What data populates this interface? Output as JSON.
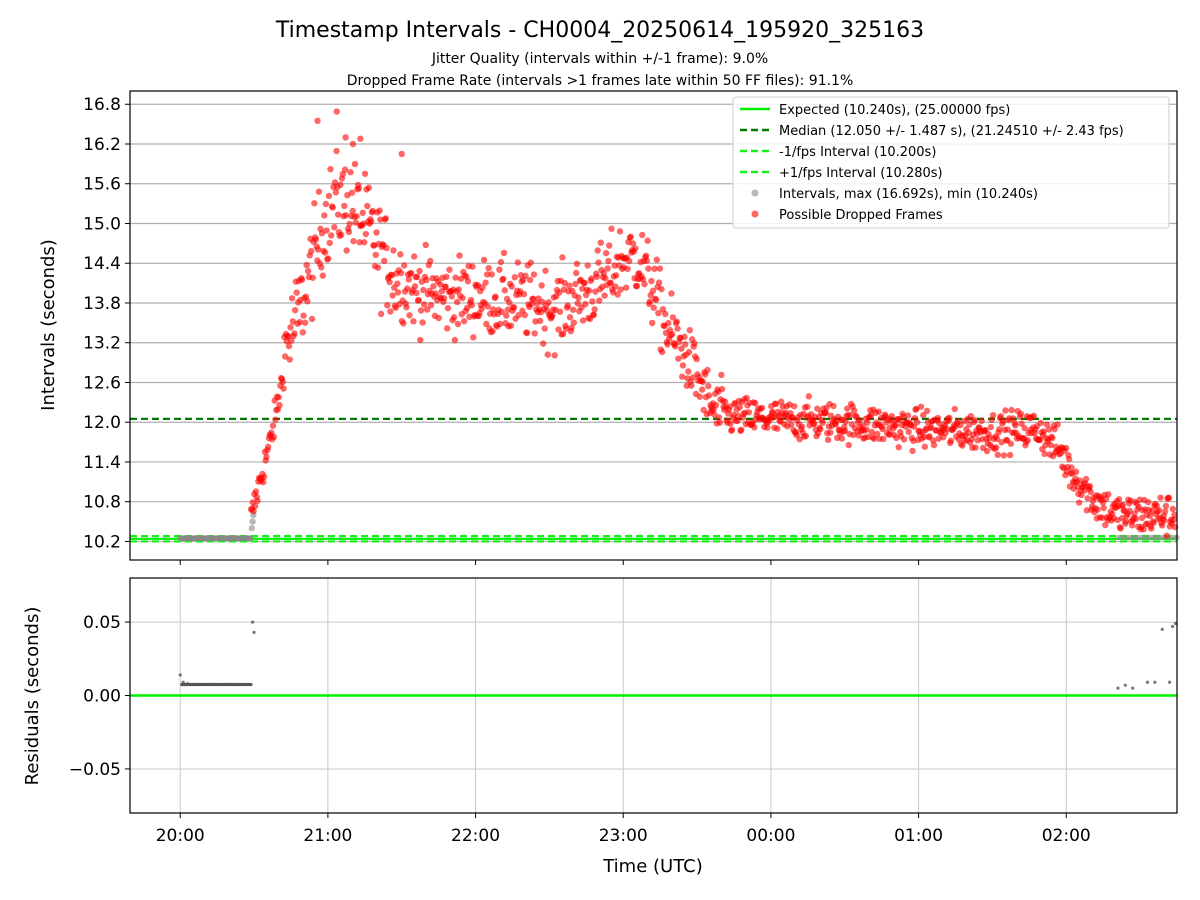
{
  "title": "Timestamp Intervals - CH0004_20250614_195920_325163",
  "subtitle1": "Jitter Quality (intervals within +/-1 frame): 9.0%",
  "subtitle2": "Dropped Frame Rate (intervals >1 frames late within 50 FF files): 91.1%",
  "colors": {
    "expected": "#00ee00",
    "median": "#007a00",
    "interval_band": "#1aee1a",
    "dropped": "#ff0000",
    "normal": "#888888",
    "residual": "#555555"
  },
  "chart_data": [
    {
      "type": "scatter",
      "ylabel": "Intervals (seconds)",
      "xlabel": "",
      "x_unit": "hours since 20:00 UTC",
      "xlim": [
        -0.34,
        4.43
      ],
      "ylim": [
        9.92,
        17.0
      ],
      "yticks": [
        "10.2",
        "10.8",
        "11.4",
        "12.0",
        "12.6",
        "13.2",
        "13.8",
        "14.4",
        "15.0",
        "15.6",
        "16.2",
        "16.8"
      ],
      "grid": true,
      "legend_position": "top-right",
      "lines": [
        {
          "name": "Expected (10.240s), (25.00000 fps)",
          "y": 10.24,
          "style": "solid"
        },
        {
          "name": "Median (12.050 +/- 1.487 s), (21.24510 +/- 2.43 fps)",
          "y": 12.05,
          "style": "dashed"
        },
        {
          "name": "-1/fps Interval (10.200s)",
          "y": 10.2,
          "style": "dashed"
        },
        {
          "name": "+1/fps Interval (10.280s)",
          "y": 10.28,
          "style": "dashed"
        }
      ],
      "series": [
        {
          "name": "Intervals, max (16.692s), min (10.240s)",
          "note": "~1330 points, gray, underneath red points",
          "sample": [
            [
              0.0,
              10.25
            ],
            [
              0.1,
              10.25
            ],
            [
              0.2,
              10.25
            ],
            [
              0.3,
              10.25
            ],
            [
              0.48,
              10.4
            ],
            [
              0.48,
              10.5
            ]
          ]
        },
        {
          "name": "Possible Dropped Frames",
          "note": "~1300 points from 20:28 to 02:45",
          "sample": [
            [
              0.5,
              10.9
            ],
            [
              0.6,
              11.8
            ],
            [
              0.8,
              13.5
            ],
            [
              0.95,
              15.2
            ],
            [
              1.05,
              16.69
            ],
            [
              1.2,
              15.6
            ],
            [
              1.5,
              14.2
            ],
            [
              2.0,
              13.9
            ],
            [
              2.5,
              13.8
            ],
            [
              3.0,
              14.5
            ],
            [
              3.3,
              13.2
            ],
            [
              3.6,
              12.2
            ],
            [
              4.0,
              12.0
            ],
            [
              5.0,
              11.9
            ],
            [
              5.5,
              11.9
            ],
            [
              5.9,
              11.4
            ],
            [
              6.2,
              10.8
            ],
            [
              6.5,
              10.5
            ],
            [
              6.7,
              10.6
            ]
          ]
        }
      ]
    },
    {
      "type": "scatter",
      "ylabel": "Residuals (seconds)",
      "xlabel": "Time (UTC)",
      "xticks": [
        "20:00",
        "21:00",
        "22:00",
        "23:00",
        "00:00",
        "01:00",
        "02:00"
      ],
      "ylim": [
        -0.08,
        0.08
      ],
      "yticks": [
        "0.05",
        "0.00",
        "−0.05"
      ],
      "grid": true,
      "zero_line": true,
      "points": [
        [
          0.0,
          0.014
        ],
        [
          0.02,
          0.009
        ],
        [
          0.05,
          0.008
        ],
        [
          0.1,
          0.0075
        ],
        [
          0.2,
          0.0075
        ],
        [
          0.3,
          0.0075
        ],
        [
          0.4,
          0.0075
        ],
        [
          0.48,
          0.0075
        ],
        [
          0.49,
          0.05
        ],
        [
          0.5,
          0.043
        ],
        [
          6.35,
          0.005
        ],
        [
          6.4,
          0.007
        ],
        [
          6.45,
          0.005
        ],
        [
          6.55,
          0.009
        ],
        [
          6.6,
          0.009
        ],
        [
          6.65,
          0.045
        ],
        [
          6.7,
          0.009
        ],
        [
          6.72,
          0.047
        ],
        [
          6.74,
          0.049
        ]
      ]
    }
  ]
}
